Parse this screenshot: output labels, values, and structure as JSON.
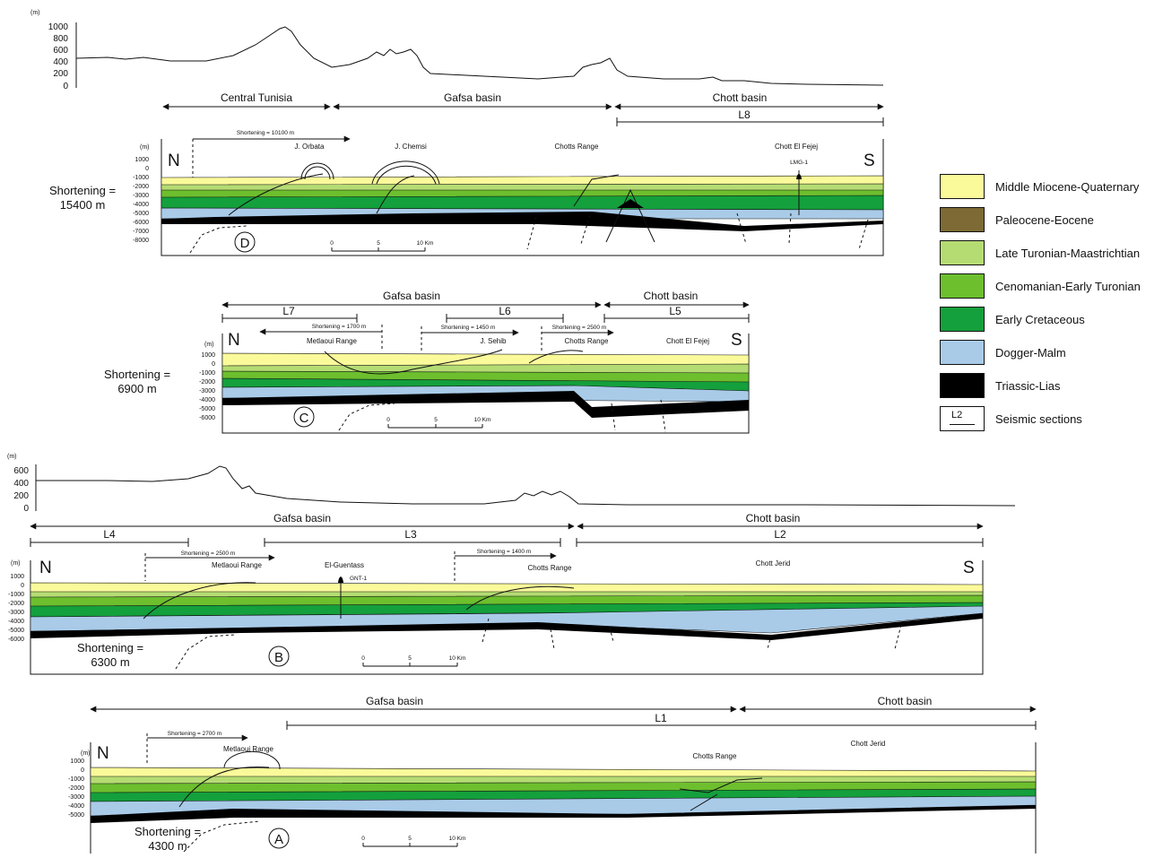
{
  "colors": {
    "miocene_quaternary": "#fafa9b",
    "paleocene_eocene": "#7d6a35",
    "late_turonian": "#b5dc73",
    "cenomanian": "#6dbf2e",
    "early_cretaceous": "#14a03c",
    "dogger_malm": "#a9cbe8",
    "triassic_lias": "#000000"
  },
  "legend": [
    {
      "label": "Middle Miocene-Quaternary",
      "color_key": "miocene_quaternary"
    },
    {
      "label": "Paleocene-Eocene",
      "color_key": "paleocene_eocene"
    },
    {
      "label": "Late Turonian-Maastrichtian",
      "color_key": "late_turonian"
    },
    {
      "label": "Cenomanian-Early Turonian",
      "color_key": "cenomanian"
    },
    {
      "label": "Early Cretaceous",
      "color_key": "early_cretaceous"
    },
    {
      "label": "Dogger-Malm",
      "color_key": "dogger_malm"
    },
    {
      "label": "Triassic-Lias",
      "color_key": "triassic_lias"
    }
  ],
  "seismic_legend": {
    "symbol": "L2",
    "label": "Seismic sections"
  },
  "topo_top": {
    "unit": "(m)",
    "ticks": [
      "1000",
      "800",
      "600",
      "400",
      "200",
      "0"
    ]
  },
  "topo_mid": {
    "unit": "(m)",
    "ticks": [
      "600",
      "400",
      "200",
      "0"
    ]
  },
  "section_D": {
    "domains": [
      "Central Tunisia",
      "Gafsa basin",
      "Chott basin"
    ],
    "seismic_lines": [
      "L8"
    ],
    "shortening_label": "Shortening = 10100 m",
    "unit": "(m)",
    "depth_ticks": [
      "1000",
      "0",
      "-1000",
      "-2000",
      "-3000",
      "-4000",
      "-5000",
      "-6000",
      "-7000",
      "-8000"
    ],
    "north": "N",
    "south": "S",
    "localities": [
      "J. Orbata",
      "J. Chemsi",
      "Chotts Range",
      "Chott El Fejej"
    ],
    "well": "LMG-1",
    "total_shortening": [
      "Shortening =",
      "15400 m"
    ],
    "letter": "D",
    "scale": [
      "0",
      "5",
      "10 Km"
    ]
  },
  "section_C": {
    "domains": [
      "Gafsa basin",
      "Chott basin"
    ],
    "seismic_lines": [
      "L7",
      "L6",
      "L5"
    ],
    "shortenings": [
      "Shortening = 1700 m",
      "Shortening = 1450 m",
      "Shortening = 2500 m"
    ],
    "unit": "(m)",
    "depth_ticks": [
      "1000",
      "0",
      "-1000",
      "-2000",
      "-3000",
      "-4000",
      "-5000",
      "-6000"
    ],
    "north": "N",
    "south": "S",
    "localities": [
      "Metlaoui Range",
      "J. Sehib",
      "Chotts Range",
      "Chott El Fejej"
    ],
    "total_shortening": [
      "Shortening =",
      "6900 m"
    ],
    "letter": "C",
    "scale": [
      "0",
      "5",
      "10 Km"
    ]
  },
  "section_B": {
    "domains": [
      "Gafsa basin",
      "Chott basin"
    ],
    "seismic_lines": [
      "L4",
      "L3",
      "L2"
    ],
    "shortenings": [
      "Shortening = 2500 m",
      "Shortening = 1400 m"
    ],
    "unit": "(m)",
    "depth_ticks": [
      "1000",
      "0",
      "-1000",
      "-2000",
      "-3000",
      "-4000",
      "-5000",
      "-6000"
    ],
    "north": "N",
    "south": "S",
    "localities": [
      "Metlaoui Range",
      "El-Guentass",
      "Chotts Range",
      "Chott Jerid"
    ],
    "well": "GNT-1",
    "total_shortening": [
      "Shortening =",
      "6300 m"
    ],
    "letter": "B",
    "scale": [
      "0",
      "5",
      "10 Km"
    ]
  },
  "section_A": {
    "domains": [
      "Gafsa basin",
      "Chott basin"
    ],
    "seismic_lines": [
      "L1"
    ],
    "shortening_label": "Shortening = 2700 m",
    "unit": "(m)",
    "depth_ticks": [
      "1000",
      "0",
      "-1000",
      "-2000",
      "-3000",
      "-4000",
      "-5000"
    ],
    "north": "N",
    "localities": [
      "Metlaoui Range",
      "Chotts Range",
      "Chott Jerid"
    ],
    "total_shortening": [
      "Shortening =",
      "4300 m"
    ],
    "letter": "A",
    "scale": [
      "0",
      "5",
      "10 Km"
    ]
  }
}
